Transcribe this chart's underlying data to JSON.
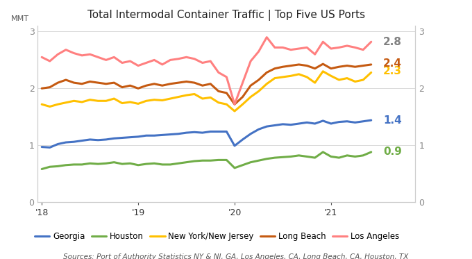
{
  "title": "Total Intermodal Container Traffic | Top Five US Ports",
  "ylabel_left": "MMT",
  "source": "Sources: Port of Authority Statistics NY & NJ, GA, Los Angeles, CA, Long Beach, CA, Houston, TX",
  "ylim": [
    0,
    3.1
  ],
  "yticks": [
    0,
    1,
    2,
    3
  ],
  "series": {
    "Georgia": {
      "color": "#4472C4",
      "label_color": "#4472C4",
      "end_label": "1.4",
      "data": [
        0.97,
        0.96,
        1.02,
        1.05,
        1.06,
        1.08,
        1.1,
        1.09,
        1.1,
        1.12,
        1.13,
        1.14,
        1.15,
        1.17,
        1.17,
        1.18,
        1.19,
        1.2,
        1.22,
        1.23,
        1.22,
        1.24,
        1.24,
        1.24,
        0.99,
        1.1,
        1.2,
        1.28,
        1.33,
        1.35,
        1.37,
        1.36,
        1.38,
        1.4,
        1.38,
        1.43,
        1.38,
        1.41,
        1.42,
        1.4,
        1.42,
        1.44
      ]
    },
    "Houston": {
      "color": "#70AD47",
      "label_color": "#70AD47",
      "end_label": "0.9",
      "data": [
        0.58,
        0.62,
        0.63,
        0.65,
        0.66,
        0.66,
        0.68,
        0.67,
        0.68,
        0.7,
        0.67,
        0.68,
        0.65,
        0.67,
        0.68,
        0.66,
        0.66,
        0.68,
        0.7,
        0.72,
        0.73,
        0.73,
        0.74,
        0.74,
        0.6,
        0.65,
        0.7,
        0.73,
        0.76,
        0.78,
        0.79,
        0.8,
        0.82,
        0.8,
        0.78,
        0.88,
        0.8,
        0.78,
        0.82,
        0.8,
        0.82,
        0.88
      ]
    },
    "New York/New Jersey": {
      "color": "#FFC000",
      "label_color": "#FFC000",
      "end_label": "2.3",
      "data": [
        1.72,
        1.68,
        1.72,
        1.75,
        1.78,
        1.76,
        1.8,
        1.78,
        1.78,
        1.82,
        1.74,
        1.76,
        1.73,
        1.78,
        1.8,
        1.79,
        1.82,
        1.85,
        1.88,
        1.9,
        1.82,
        1.84,
        1.75,
        1.72,
        1.6,
        1.72,
        1.85,
        1.95,
        2.08,
        2.18,
        2.2,
        2.22,
        2.25,
        2.2,
        2.1,
        2.3,
        2.22,
        2.15,
        2.18,
        2.12,
        2.15,
        2.28
      ]
    },
    "Long Beach": {
      "color": "#C55A11",
      "label_color": "#C55A11",
      "end_label": "2.4",
      "data": [
        2.0,
        2.02,
        2.1,
        2.15,
        2.1,
        2.08,
        2.12,
        2.1,
        2.08,
        2.1,
        2.02,
        2.05,
        2.0,
        2.05,
        2.08,
        2.05,
        2.08,
        2.1,
        2.12,
        2.1,
        2.05,
        2.08,
        1.95,
        1.92,
        1.72,
        1.85,
        2.05,
        2.15,
        2.28,
        2.35,
        2.38,
        2.4,
        2.42,
        2.4,
        2.35,
        2.43,
        2.35,
        2.38,
        2.4,
        2.38,
        2.4,
        2.42
      ]
    },
    "Los Angeles": {
      "color": "#FF8080",
      "label_color": "#808080",
      "end_label": "2.8",
      "data": [
        2.55,
        2.48,
        2.6,
        2.68,
        2.62,
        2.58,
        2.6,
        2.55,
        2.5,
        2.55,
        2.45,
        2.48,
        2.4,
        2.45,
        2.5,
        2.42,
        2.5,
        2.52,
        2.55,
        2.52,
        2.45,
        2.48,
        2.28,
        2.2,
        1.72,
        2.1,
        2.48,
        2.65,
        2.9,
        2.72,
        2.72,
        2.68,
        2.7,
        2.72,
        2.6,
        2.82,
        2.7,
        2.72,
        2.75,
        2.72,
        2.68,
        2.82
      ]
    }
  },
  "n_points": 42,
  "x_tick_positions": [
    0,
    12,
    24,
    36
  ],
  "x_tick_labels": [
    "'18",
    "'19",
    "'20",
    "'21"
  ],
  "background_color": "#FFFFFF",
  "grid_color": "#D3D3D3",
  "linewidth": 2.2
}
